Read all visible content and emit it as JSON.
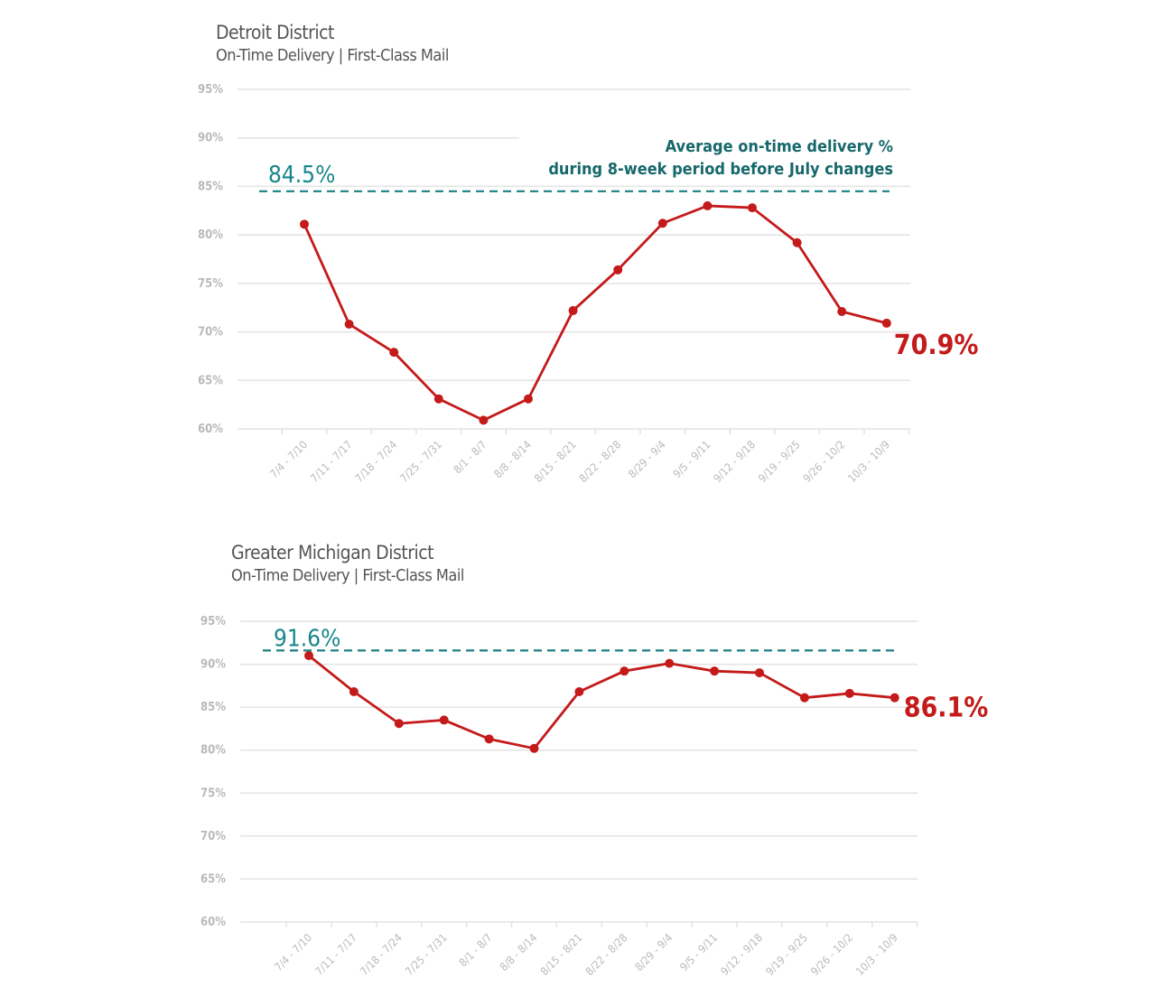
{
  "colors": {
    "series": "#c41a1a",
    "average_line": "#1d7f83",
    "grid": "#e3e3e3",
    "tick_text": "#b9b9b9",
    "title_text": "#555555"
  },
  "chart_data": [
    {
      "type": "line",
      "title": "Detroit District",
      "subtitle": "On-Time Delivery | First-Class Mail",
      "categories": [
        "7/4 - 7/10",
        "7/11 - 7/17",
        "7/18 - 7/24",
        "7/25 - 7/31",
        "8/1 - 8/7",
        "8/8 - 8/14",
        "8/15 - 8/21",
        "8/22 - 8/28",
        "8/29 - 9/4",
        "9/5 - 9/11",
        "9/12 - 9/18",
        "9/19 - 9/25",
        "9/26 - 10/2",
        "10/3 - 10/9"
      ],
      "series": [
        {
          "values": [
            81.1,
            70.8,
            67.9,
            63.1,
            60.9,
            63.1,
            72.2,
            76.4,
            81.2,
            83.0,
            82.8,
            79.2,
            72.1,
            70.9
          ]
        }
      ],
      "ylim": [
        60,
        95
      ],
      "yticks": [
        "60%",
        "65%",
        "70%",
        "75%",
        "80%",
        "85%",
        "90%",
        "95%"
      ],
      "average": {
        "value": 84.5,
        "label": "84.5%"
      },
      "end_label": "70.9%",
      "annotation": [
        "Average on-time delivery %",
        "during 8-week period before July changes"
      ],
      "grid": true
    },
    {
      "type": "line",
      "title": "Greater Michigan District",
      "subtitle": "On-Time Delivery | First-Class Mail",
      "categories": [
        "7/4 - 7/10",
        "7/11 - 7/17",
        "7/18 - 7/24",
        "7/25 - 7/31",
        "8/1 - 8/7",
        "8/8 - 8/14",
        "8/15 - 8/21",
        "8/22 - 8/28",
        "8/29 - 9/4",
        "9/5 - 9/11",
        "9/12 - 9/18",
        "9/19 - 9/25",
        "9/26 - 10/2",
        "10/3 - 10/9"
      ],
      "series": [
        {
          "values": [
            91.0,
            86.8,
            83.1,
            83.5,
            81.3,
            80.2,
            86.8,
            89.2,
            90.1,
            89.2,
            89.0,
            86.1,
            86.6,
            86.1
          ]
        }
      ],
      "ylim": [
        60,
        95
      ],
      "yticks": [
        "60%",
        "65%",
        "70%",
        "75%",
        "80%",
        "85%",
        "90%",
        "95%"
      ],
      "average": {
        "value": 91.6,
        "label": "91.6%"
      },
      "end_label": "86.1%",
      "grid": true
    }
  ]
}
